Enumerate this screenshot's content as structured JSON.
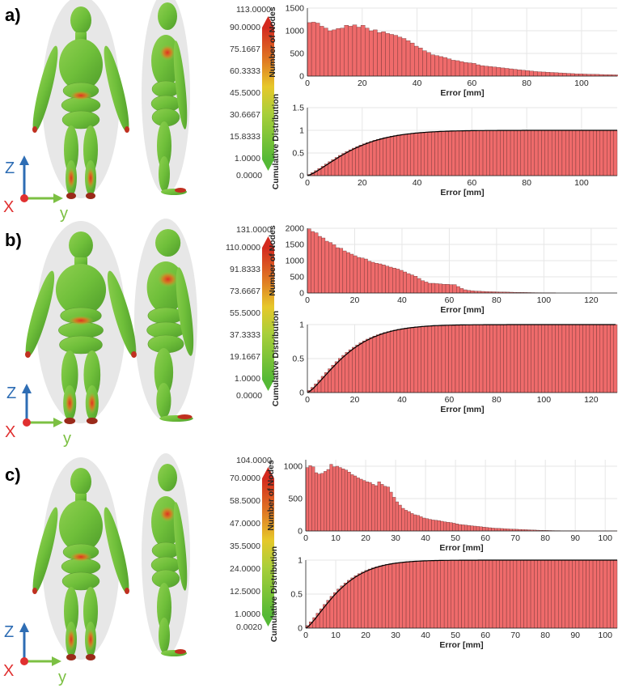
{
  "panels": [
    {
      "label": "a)",
      "colorbar": {
        "max": "113.0000",
        "ticks": [
          "90.0000",
          "75.1667",
          "60.3333",
          "45.5000",
          "30.6667",
          "15.8333",
          "1.0000"
        ],
        "min": "0.0000"
      },
      "axes": {
        "z": "Z",
        "x": "X",
        "y": "y"
      }
    },
    {
      "label": "b)",
      "colorbar": {
        "max": "131.0000",
        "ticks": [
          "110.0000",
          "91.8333",
          "73.6667",
          "55.5000",
          "37.3333",
          "19.1667",
          "1.0000"
        ],
        "min": "0.0000"
      },
      "axes": {
        "z": "Z",
        "x": "X",
        "y": "y"
      }
    },
    {
      "label": "c)",
      "colorbar": {
        "max": "104.0000",
        "ticks": [
          "70.0000",
          "58.5000",
          "47.0000",
          "35.5000",
          "24.0000",
          "12.5000",
          "1.0000"
        ],
        "min": "0.0020"
      },
      "axes": {
        "z": "Z",
        "x": "X",
        "y": "y"
      }
    }
  ],
  "colors": {
    "bar": "#ef6b6b",
    "bar_edge": "#5a2a2a",
    "cdf_line": "#000000",
    "axis_blue": "#2e6db4",
    "axis_red": "#e03030",
    "axis_green": "#7cc043"
  },
  "chart_data": [
    {
      "panel": "a",
      "type": "bar",
      "xlabel": "Error [mm]",
      "ylabel": "Number of Nodes",
      "xlim": [
        0,
        113
      ],
      "ylim": [
        0,
        1500
      ],
      "xticks": [
        0,
        20,
        40,
        60,
        80,
        100
      ],
      "yticks": [
        0,
        500,
        1000,
        1500
      ],
      "grid": true,
      "bin_width": 1.5,
      "x_start": 0,
      "values": [
        1180,
        1190,
        1170,
        1100,
        1060,
        1000,
        1020,
        1050,
        1060,
        1120,
        1100,
        1130,
        1080,
        1120,
        1060,
        1000,
        1020,
        960,
        980,
        940,
        920,
        900,
        860,
        830,
        780,
        730,
        660,
        620,
        560,
        520,
        470,
        450,
        430,
        410,
        380,
        350,
        340,
        320,
        300,
        290,
        280,
        250,
        230,
        220,
        210,
        200,
        190,
        180,
        170,
        160,
        150,
        140,
        130,
        120,
        110,
        100,
        95,
        90,
        85,
        80,
        75,
        70,
        65,
        60,
        55,
        50,
        48,
        45,
        42,
        40,
        38,
        35,
        32,
        30,
        28,
        26,
        24
      ]
    },
    {
      "panel": "a",
      "type": "bar",
      "xlabel": "Error [mm]",
      "ylabel": "Cumulative Distribution",
      "xlim": [
        0,
        113
      ],
      "ylim": [
        0,
        1.5
      ],
      "xticks": [
        0,
        20,
        40,
        60,
        80,
        100
      ],
      "yticks": [
        0,
        0.5,
        1,
        1.5
      ],
      "grid": true,
      "cdf_scale": 18.5
    },
    {
      "panel": "b",
      "type": "bar",
      "xlabel": "Error [mm]",
      "ylabel": "Number of Nodes",
      "xlim": [
        0,
        131
      ],
      "ylim": [
        0,
        2000
      ],
      "xticks": [
        0,
        20,
        40,
        60,
        80,
        100,
        120
      ],
      "yticks": [
        0,
        500,
        1000,
        1500,
        2000
      ],
      "grid": true,
      "bin_width": 1.5,
      "x_start": 0,
      "values": [
        1980,
        1900,
        1860,
        1750,
        1700,
        1600,
        1560,
        1490,
        1400,
        1380,
        1300,
        1250,
        1200,
        1150,
        1100,
        1080,
        1050,
        980,
        950,
        920,
        900,
        870,
        830,
        800,
        770,
        740,
        700,
        650,
        600,
        560,
        520,
        450,
        380,
        340,
        300,
        300,
        290,
        280,
        270,
        270,
        260,
        260,
        200,
        140,
        100,
        80,
        70,
        60,
        55,
        50,
        45,
        40,
        38,
        35,
        32,
        30,
        28,
        25,
        22,
        20,
        18,
        16,
        14,
        12,
        10,
        9,
        8,
        7,
        6,
        5
      ]
    },
    {
      "panel": "b",
      "type": "bar",
      "xlabel": "Error [mm]",
      "ylabel": "Cumulative Distribution",
      "xlim": [
        0,
        131
      ],
      "ylim": [
        0,
        1
      ],
      "xticks": [
        0,
        20,
        40,
        60,
        80,
        100,
        120
      ],
      "yticks": [
        0,
        0.5,
        1
      ],
      "grid": true,
      "cdf_scale": 19
    },
    {
      "panel": "c",
      "type": "bar",
      "xlabel": "Error [mm]",
      "ylabel": "Number of Nodes",
      "xlim": [
        0,
        104
      ],
      "ylim": [
        0,
        1100
      ],
      "xticks": [
        0,
        10,
        20,
        30,
        40,
        50,
        60,
        70,
        80,
        90,
        100
      ],
      "yticks": [
        0,
        500,
        1000
      ],
      "grid": true,
      "bin_width": 1.0,
      "x_start": 0,
      "values": [
        980,
        1010,
        990,
        900,
        880,
        890,
        920,
        950,
        1030,
        990,
        1000,
        980,
        960,
        940,
        910,
        870,
        850,
        820,
        800,
        780,
        760,
        750,
        720,
        700,
        760,
        720,
        690,
        680,
        600,
        520,
        450,
        400,
        350,
        320,
        300,
        270,
        250,
        240,
        220,
        200,
        190,
        180,
        170,
        165,
        160,
        150,
        140,
        135,
        130,
        120,
        110,
        100,
        95,
        90,
        85,
        80,
        75,
        70,
        65,
        60,
        55,
        50,
        45,
        42,
        40,
        38,
        35,
        32,
        30,
        28,
        26,
        24,
        22,
        20,
        18,
        16,
        14,
        12,
        10,
        9,
        8,
        7,
        6,
        5,
        5,
        4,
        4,
        3,
        3,
        2,
        2,
        2,
        1,
        1,
        1,
        1,
        1,
        1,
        1,
        1,
        1,
        1,
        1,
        1
      ]
    },
    {
      "panel": "c",
      "type": "bar",
      "xlabel": "Error [mm]",
      "ylabel": "Cumulative Distribution",
      "xlim": [
        0,
        104
      ],
      "ylim": [
        0,
        1
      ],
      "xticks": [
        0,
        10,
        20,
        30,
        40,
        50,
        60,
        70,
        80,
        90,
        100
      ],
      "yticks": [
        0,
        0.5,
        1
      ],
      "grid": true,
      "cdf_scale": 13
    }
  ]
}
